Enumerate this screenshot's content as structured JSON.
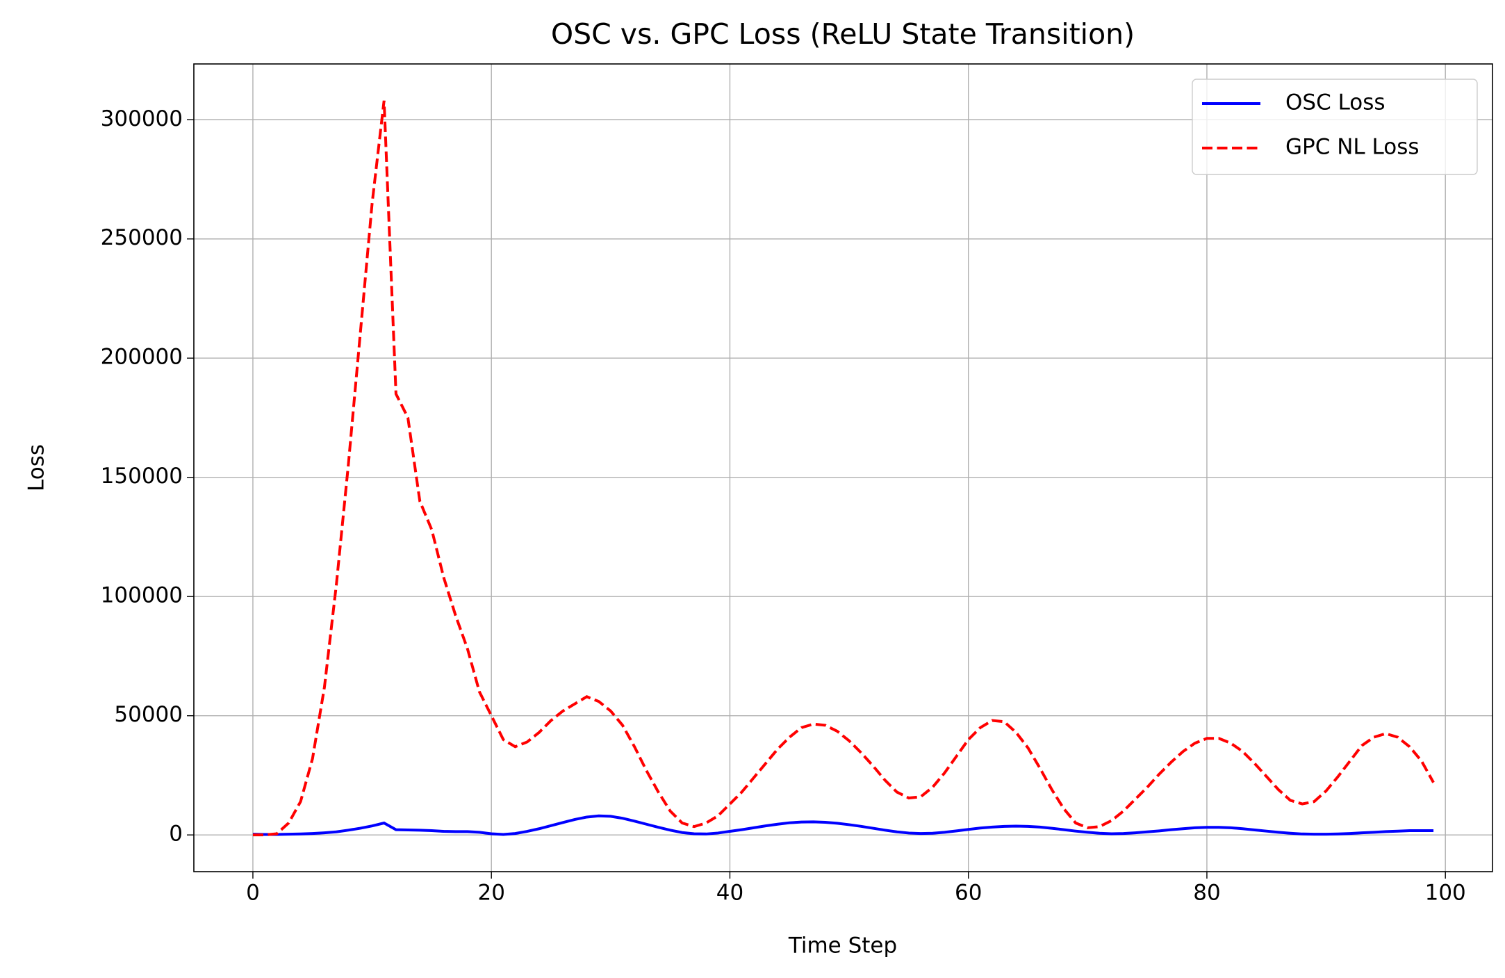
{
  "chart_data": {
    "type": "line",
    "title": "OSC vs. GPC Loss (ReLU State Transition)",
    "xlabel": "Time Step",
    "ylabel": "Loss",
    "x": [
      0,
      1,
      2,
      3,
      4,
      5,
      6,
      7,
      8,
      9,
      10,
      11,
      12,
      13,
      14,
      15,
      16,
      17,
      18,
      19,
      20,
      21,
      22,
      23,
      24,
      25,
      26,
      27,
      28,
      29,
      30,
      31,
      32,
      33,
      34,
      35,
      36,
      37,
      38,
      39,
      40,
      41,
      42,
      43,
      44,
      45,
      46,
      47,
      48,
      49,
      50,
      51,
      52,
      53,
      54,
      55,
      56,
      57,
      58,
      59,
      60,
      61,
      62,
      63,
      64,
      65,
      66,
      67,
      68,
      69,
      70,
      71,
      72,
      73,
      74,
      75,
      76,
      77,
      78,
      79,
      80,
      81,
      82,
      83,
      84,
      85,
      86,
      87,
      88,
      89,
      90,
      91,
      92,
      93,
      94,
      95,
      96,
      97,
      98,
      99
    ],
    "series": [
      {
        "name": "OSC Loss",
        "color": "#0000ff",
        "dash": false,
        "values": [
          300,
          200,
          200,
          300,
          400,
          600,
          900,
          1300,
          2000,
          2800,
          3800,
          5000,
          2200,
          2100,
          2000,
          1800,
          1500,
          1400,
          1400,
          1100,
          500,
          200,
          600,
          1500,
          2600,
          3900,
          5200,
          6500,
          7500,
          8000,
          7800,
          7000,
          5800,
          4500,
          3200,
          2000,
          1000,
          500,
          400,
          800,
          1500,
          2200,
          3000,
          3800,
          4500,
          5100,
          5400,
          5500,
          5300,
          4900,
          4300,
          3600,
          2800,
          2000,
          1300,
          800,
          600,
          700,
          1100,
          1700,
          2300,
          2900,
          3300,
          3600,
          3700,
          3600,
          3300,
          2800,
          2200,
          1600,
          1100,
          700,
          500,
          600,
          900,
          1300,
          1700,
          2200,
          2600,
          3000,
          3200,
          3200,
          3000,
          2600,
          2100,
          1600,
          1100,
          700,
          400,
          300,
          300,
          400,
          600,
          900,
          1100,
          1400,
          1600,
          1800,
          1800,
          1800
        ]
      },
      {
        "name": "GPC NL Loss",
        "color": "#ff0000",
        "dash": true,
        "values": [
          0,
          0,
          500,
          5000,
          14000,
          32000,
          62000,
          105000,
          155000,
          210000,
          265000,
          308000,
          185000,
          175000,
          140000,
          128000,
          108000,
          92000,
          78000,
          60000,
          50000,
          40000,
          37000,
          39000,
          43000,
          48000,
          52000,
          55000,
          58000,
          56000,
          52000,
          46000,
          37000,
          27000,
          18000,
          10000,
          5000,
          3500,
          5000,
          8000,
          13000,
          18000,
          24000,
          30000,
          36000,
          41000,
          45000,
          46500,
          46000,
          43500,
          39500,
          34500,
          29000,
          23000,
          18000,
          15500,
          16000,
          20000,
          26000,
          33000,
          40000,
          45000,
          48000,
          47500,
          43000,
          36500,
          28000,
          19000,
          11000,
          5000,
          3000,
          3500,
          6000,
          10000,
          15000,
          20000,
          25500,
          30500,
          35000,
          38500,
          40500,
          40500,
          38500,
          35000,
          30000,
          24500,
          19000,
          14500,
          13000,
          14000,
          18500,
          24500,
          31000,
          37500,
          41000,
          42500,
          41000,
          37000,
          31000,
          22000
        ]
      }
    ],
    "xlim": [
      -4.95,
      103.95
    ],
    "xticks": [
      0,
      20,
      40,
      60,
      80,
      100
    ],
    "ylim": [
      -15400,
      323400
    ],
    "yticks": [
      0,
      50000,
      100000,
      150000,
      200000,
      250000,
      300000
    ],
    "grid": true,
    "legend": "upper right"
  }
}
